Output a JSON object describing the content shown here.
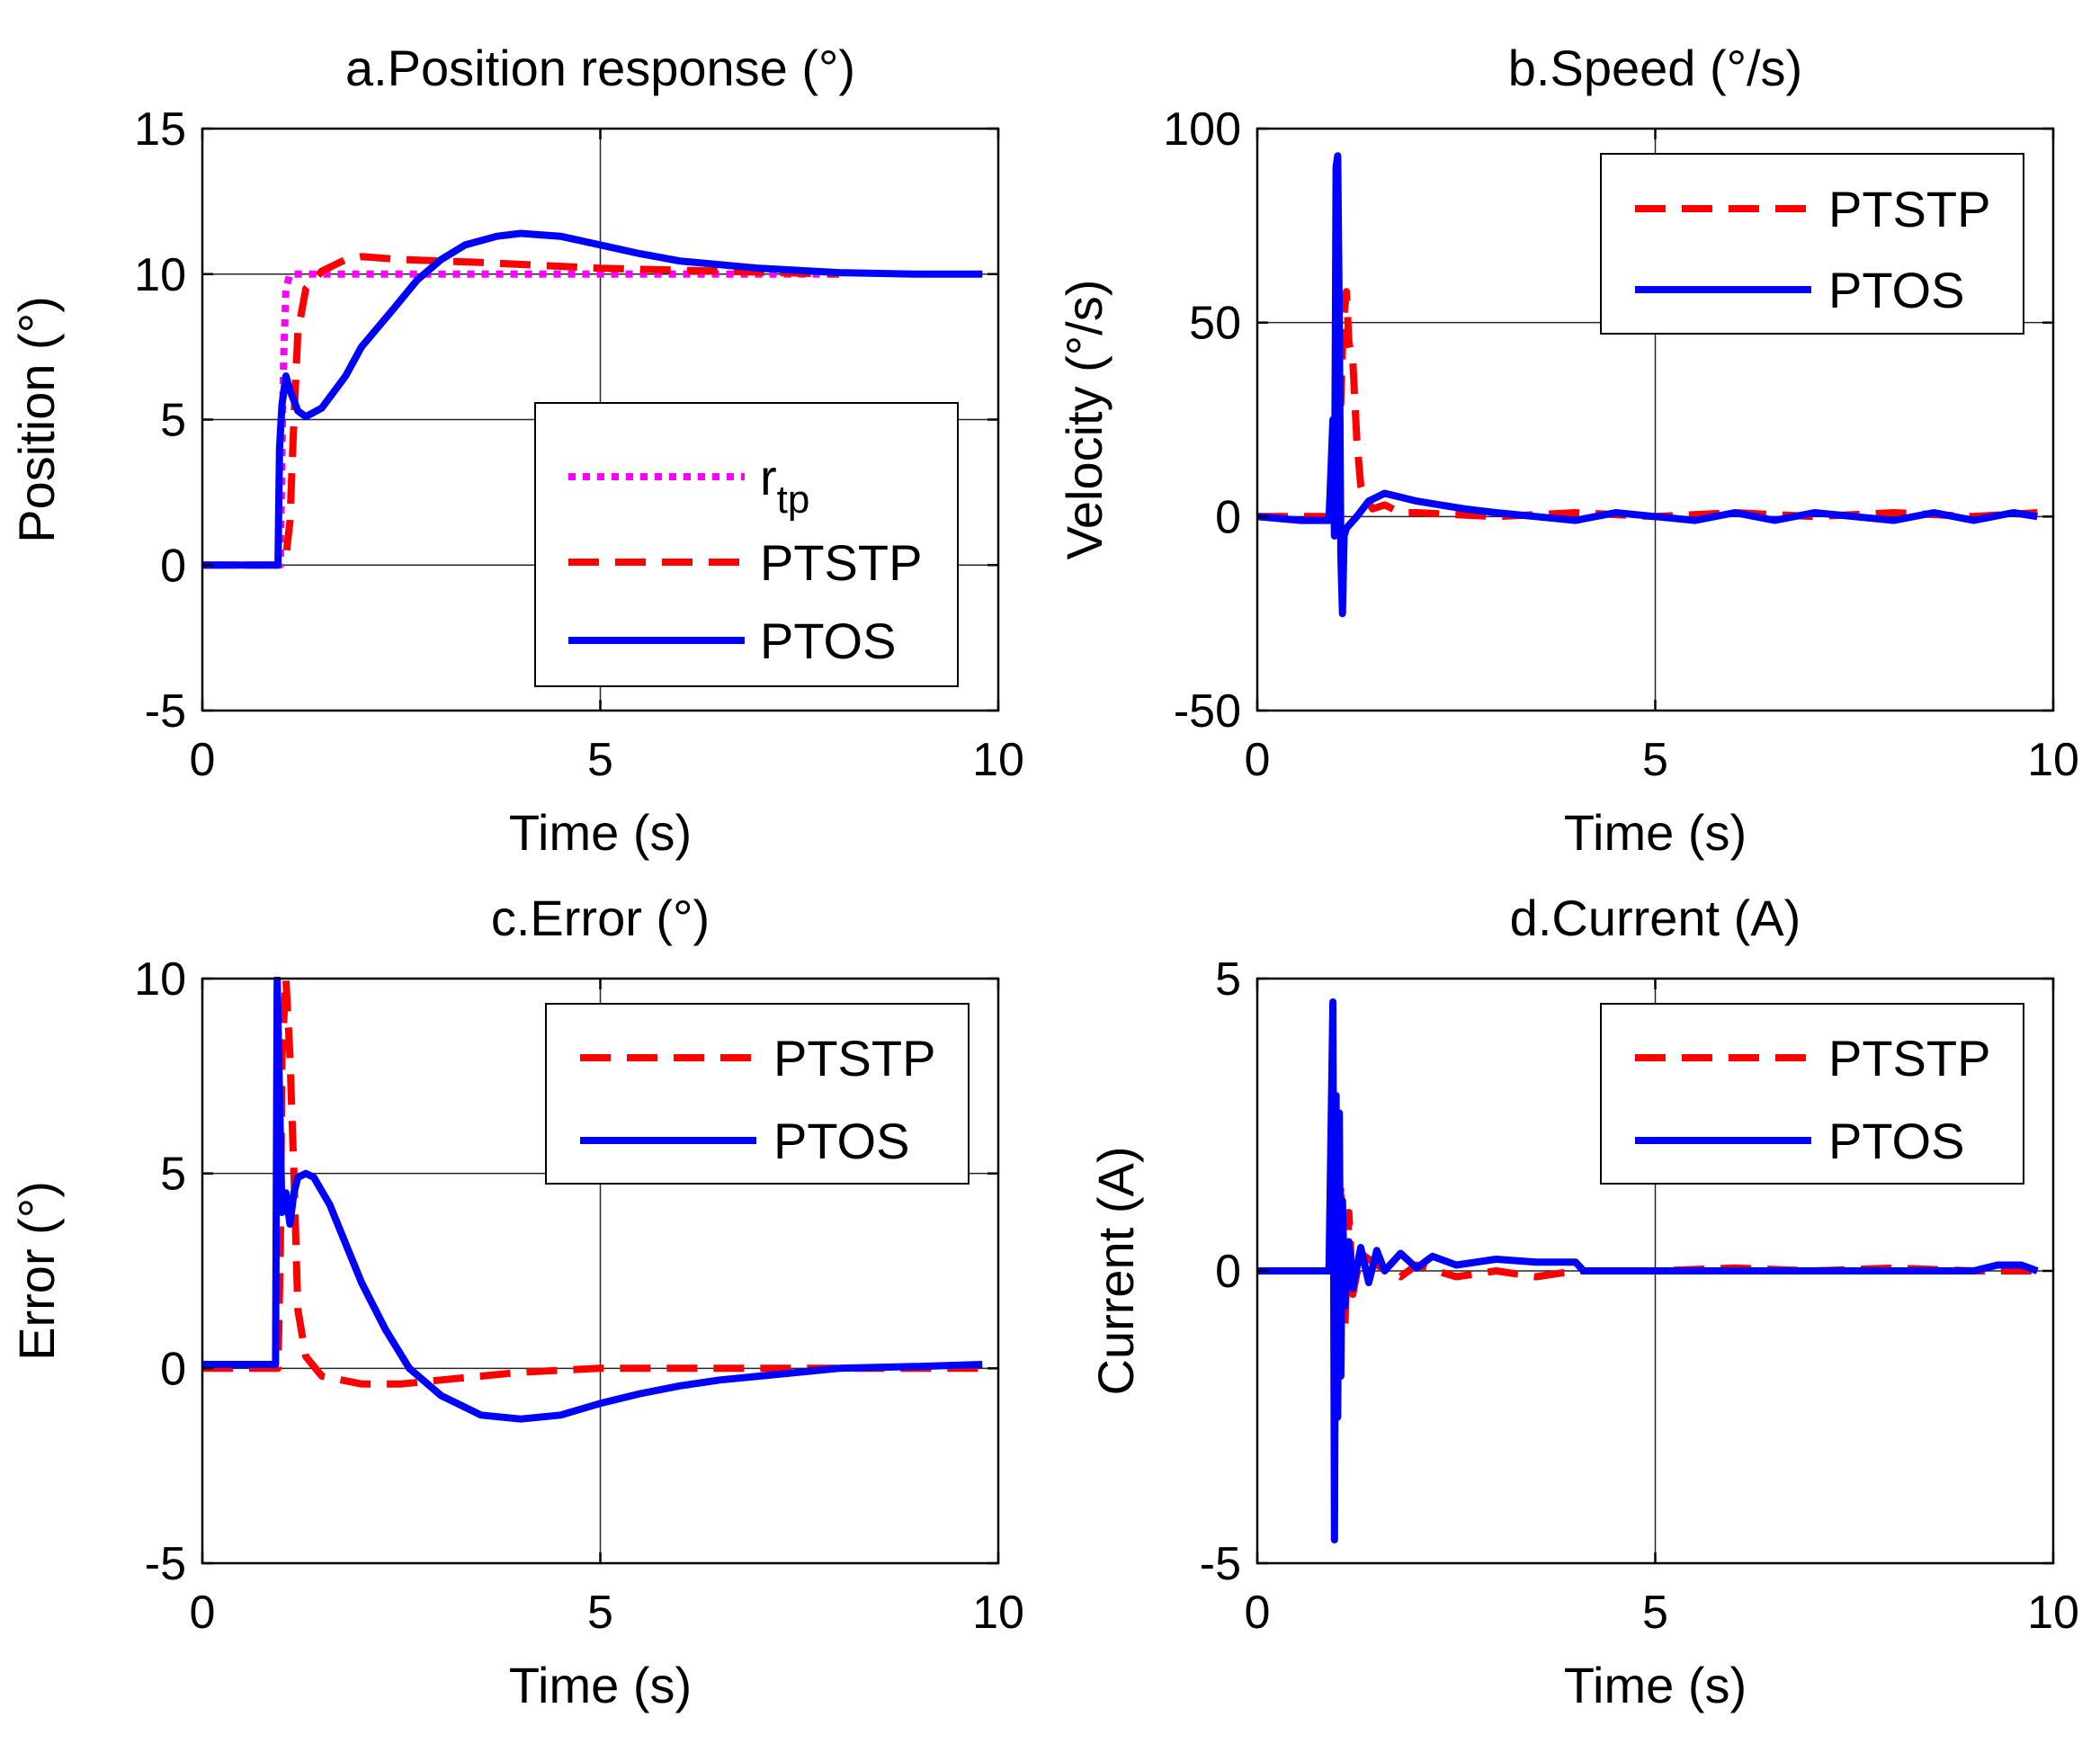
{
  "figure": {
    "colors": {
      "magenta": "#ff00ff",
      "red": "#ff0000",
      "blue": "#0000ff",
      "grid": "#262626",
      "axis": "#000000"
    }
  },
  "chart_data": [
    {
      "type": "line",
      "title": "a.Position response (°)",
      "xlabel": "Time (s)",
      "ylabel": "Position (°)",
      "xlim": [
        0,
        10
      ],
      "ylim": [
        -5,
        15
      ],
      "xticks": [
        0,
        5,
        10
      ],
      "xtick_labels": [
        "0",
        "5",
        "10"
      ],
      "yticks": [
        -5,
        0,
        5,
        10,
        15
      ],
      "ytick_labels": [
        "-5",
        "0",
        "5",
        "10",
        "15"
      ],
      "grid": true,
      "legend_position": "right-middle",
      "series": [
        {
          "name": "r",
          "name_sub": "tp",
          "color": "magenta",
          "style": "dotted",
          "points": [
            [
              0,
              0
            ],
            [
              0.98,
              0
            ],
            [
              1.0,
              4
            ],
            [
              1.02,
              7
            ],
            [
              1.05,
              9.5
            ],
            [
              1.1,
              10
            ],
            [
              8,
              10
            ]
          ]
        },
        {
          "name": "PTSTP",
          "color": "red",
          "style": "dashed",
          "points": [
            [
              0,
              0
            ],
            [
              0.95,
              0
            ],
            [
              1.05,
              0.3
            ],
            [
              1.1,
              1.5
            ],
            [
              1.15,
              5
            ],
            [
              1.2,
              8
            ],
            [
              1.3,
              9.5
            ],
            [
              1.5,
              10.1
            ],
            [
              1.8,
              10.5
            ],
            [
              2.0,
              10.6
            ],
            [
              2.5,
              10.5
            ],
            [
              3.5,
              10.4
            ],
            [
              5.0,
              10.2
            ],
            [
              6.5,
              10.1
            ],
            [
              8.0,
              10.0
            ]
          ]
        },
        {
          "name": "PTOS",
          "color": "blue",
          "style": "solid",
          "points": [
            [
              0,
              0
            ],
            [
              0.95,
              0
            ],
            [
              0.97,
              4
            ],
            [
              1.0,
              5.5
            ],
            [
              1.05,
              6.5
            ],
            [
              1.1,
              6.0
            ],
            [
              1.2,
              5.3
            ],
            [
              1.3,
              5.1
            ],
            [
              1.5,
              5.4
            ],
            [
              1.8,
              6.5
            ],
            [
              2.0,
              7.5
            ],
            [
              2.4,
              8.8
            ],
            [
              2.7,
              9.8
            ],
            [
              3.0,
              10.5
            ],
            [
              3.3,
              11.0
            ],
            [
              3.7,
              11.3
            ],
            [
              4.0,
              11.4
            ],
            [
              4.5,
              11.3
            ],
            [
              5.0,
              11.0
            ],
            [
              5.5,
              10.7
            ],
            [
              6.0,
              10.45
            ],
            [
              7.0,
              10.2
            ],
            [
              8.0,
              10.05
            ],
            [
              9.0,
              10.0
            ],
            [
              9.8,
              10.0
            ]
          ]
        }
      ]
    },
    {
      "type": "line",
      "title": "b.Speed (°/s)",
      "xlabel": "Time (s)",
      "ylabel": "Velocity (°/s)",
      "xlim": [
        0,
        10
      ],
      "ylim": [
        -50,
        100
      ],
      "xticks": [
        0,
        5,
        10
      ],
      "xtick_labels": [
        "0",
        "5",
        "10"
      ],
      "yticks": [
        -50,
        0,
        50,
        100
      ],
      "ytick_labels": [
        "-50",
        "0",
        "50",
        "100"
      ],
      "grid": true,
      "legend_position": "top-right",
      "series": [
        {
          "name": "PTSTP",
          "color": "red",
          "style": "dashed",
          "points": [
            [
              0,
              0
            ],
            [
              0.95,
              0
            ],
            [
              1.0,
              2
            ],
            [
              1.05,
              30
            ],
            [
              1.08,
              50
            ],
            [
              1.12,
              58
            ],
            [
              1.15,
              45
            ],
            [
              1.2,
              40
            ],
            [
              1.25,
              20
            ],
            [
              1.3,
              8
            ],
            [
              1.35,
              5
            ],
            [
              1.45,
              2
            ],
            [
              1.6,
              3
            ],
            [
              1.8,
              1
            ],
            [
              2.0,
              1
            ],
            [
              2.5,
              0.5
            ],
            [
              3.0,
              0
            ],
            [
              4.0,
              1
            ],
            [
              5.0,
              0
            ],
            [
              6.0,
              1
            ],
            [
              7.0,
              0
            ],
            [
              8.0,
              1
            ],
            [
              9.0,
              0
            ],
            [
              9.8,
              1
            ]
          ]
        },
        {
          "name": "PTOS",
          "color": "blue",
          "style": "solid",
          "points": [
            [
              0,
              0
            ],
            [
              0.55,
              -1
            ],
            [
              0.9,
              -1
            ],
            [
              0.95,
              25
            ],
            [
              0.97,
              -5
            ],
            [
              0.99,
              90
            ],
            [
              1.01,
              93
            ],
            [
              1.03,
              50
            ],
            [
              1.05,
              -10
            ],
            [
              1.07,
              -25
            ],
            [
              1.09,
              -5
            ],
            [
              1.12,
              -3
            ],
            [
              1.25,
              0
            ],
            [
              1.4,
              4
            ],
            [
              1.6,
              6
            ],
            [
              1.8,
              5
            ],
            [
              2.0,
              4
            ],
            [
              2.3,
              3
            ],
            [
              2.6,
              2
            ],
            [
              3.0,
              1
            ],
            [
              3.5,
              0
            ],
            [
              4.0,
              -1
            ],
            [
              4.5,
              1
            ],
            [
              5.0,
              0
            ],
            [
              5.5,
              -1
            ],
            [
              6.0,
              1
            ],
            [
              6.5,
              -1
            ],
            [
              7.0,
              1
            ],
            [
              7.5,
              0
            ],
            [
              8.0,
              -1
            ],
            [
              8.5,
              1
            ],
            [
              9.0,
              -1
            ],
            [
              9.5,
              1
            ],
            [
              9.8,
              0
            ]
          ]
        }
      ]
    },
    {
      "type": "line",
      "title": "c.Error (°)",
      "xlabel": "Time (s)",
      "ylabel": "Error (°)",
      "xlim": [
        0,
        10
      ],
      "ylim": [
        -5,
        10
      ],
      "xticks": [
        0,
        5,
        10
      ],
      "xtick_labels": [
        "0",
        "5",
        "10"
      ],
      "yticks": [
        -5,
        0,
        5,
        10
      ],
      "ytick_labels": [
        "-5",
        "0",
        "5",
        "10"
      ],
      "grid": true,
      "legend_position": "top-right",
      "series": [
        {
          "name": "PTSTP",
          "color": "red",
          "style": "dashed",
          "points": [
            [
              0,
              0
            ],
            [
              0.95,
              0
            ],
            [
              0.98,
              3
            ],
            [
              1.0,
              8
            ],
            [
              1.05,
              10
            ],
            [
              1.1,
              8
            ],
            [
              1.15,
              5
            ],
            [
              1.2,
              1.5
            ],
            [
              1.3,
              0.3
            ],
            [
              1.5,
              -0.2
            ],
            [
              2.0,
              -0.4
            ],
            [
              2.5,
              -0.4
            ],
            [
              3.0,
              -0.3
            ],
            [
              3.5,
              -0.2
            ],
            [
              4.0,
              -0.1
            ],
            [
              5.0,
              0
            ],
            [
              6.0,
              0
            ],
            [
              7.0,
              0
            ],
            [
              8.0,
              0
            ],
            [
              9.0,
              0
            ],
            [
              9.8,
              0
            ]
          ]
        },
        {
          "name": "PTOS",
          "color": "blue",
          "style": "solid",
          "points": [
            [
              0,
              0.1
            ],
            [
              0.92,
              0.1
            ],
            [
              0.94,
              10
            ],
            [
              0.97,
              7
            ],
            [
              1.0,
              4
            ],
            [
              1.05,
              4.5
            ],
            [
              1.1,
              3.7
            ],
            [
              1.15,
              4.5
            ],
            [
              1.2,
              4.9
            ],
            [
              1.3,
              5.0
            ],
            [
              1.4,
              4.9
            ],
            [
              1.6,
              4.2
            ],
            [
              1.8,
              3.2
            ],
            [
              2.0,
              2.2
            ],
            [
              2.3,
              1.0
            ],
            [
              2.6,
              0.0
            ],
            [
              3.0,
              -0.7
            ],
            [
              3.5,
              -1.2
            ],
            [
              4.0,
              -1.3
            ],
            [
              4.5,
              -1.2
            ],
            [
              5.0,
              -0.9
            ],
            [
              5.5,
              -0.65
            ],
            [
              6.0,
              -0.45
            ],
            [
              6.5,
              -0.3
            ],
            [
              7.0,
              -0.2
            ],
            [
              7.5,
              -0.1
            ],
            [
              8.0,
              0
            ],
            [
              9.0,
              0.05
            ],
            [
              9.8,
              0.1
            ]
          ]
        }
      ]
    },
    {
      "type": "line",
      "title": "d.Current (A)",
      "xlabel": "Time (s)",
      "ylabel": "Current (A)",
      "xlim": [
        0,
        10
      ],
      "ylim": [
        -5,
        5
      ],
      "xticks": [
        0,
        5,
        10
      ],
      "xtick_labels": [
        "0",
        "5",
        "10"
      ],
      "yticks": [
        -5,
        0,
        5
      ],
      "ytick_labels": [
        "-5",
        "0",
        "5"
      ],
      "grid": true,
      "legend_position": "top-right",
      "series": [
        {
          "name": "PTSTP",
          "color": "red",
          "style": "dashed",
          "points": [
            [
              0,
              0
            ],
            [
              0.95,
              0
            ],
            [
              1.0,
              -0.5
            ],
            [
              1.05,
              1.5
            ],
            [
              1.1,
              -1.0
            ],
            [
              1.15,
              1.0
            ],
            [
              1.2,
              -0.4
            ],
            [
              1.3,
              0.3
            ],
            [
              1.5,
              0.1
            ],
            [
              1.8,
              -0.1
            ],
            [
              2.0,
              0.1
            ],
            [
              2.5,
              -0.1
            ],
            [
              3.0,
              0
            ],
            [
              3.5,
              -0.1
            ],
            [
              4.0,
              0
            ],
            [
              5.0,
              0
            ],
            [
              6.0,
              0.05
            ],
            [
              7.0,
              0
            ],
            [
              8.0,
              0.05
            ],
            [
              9.0,
              0
            ],
            [
              9.8,
              0
            ]
          ]
        },
        {
          "name": "PTOS",
          "color": "blue",
          "style": "solid",
          "points": [
            [
              0,
              0
            ],
            [
              0.9,
              0
            ],
            [
              0.95,
              4.6
            ],
            [
              0.97,
              -4.6
            ],
            [
              0.99,
              3.0
            ],
            [
              1.01,
              -2.5
            ],
            [
              1.03,
              2.7
            ],
            [
              1.05,
              -1.8
            ],
            [
              1.07,
              1.2
            ],
            [
              1.1,
              -0.6
            ],
            [
              1.15,
              0.5
            ],
            [
              1.2,
              -0.3
            ],
            [
              1.3,
              0.4
            ],
            [
              1.4,
              -0.2
            ],
            [
              1.5,
              0.35
            ],
            [
              1.6,
              0
            ],
            [
              1.8,
              0.3
            ],
            [
              2.0,
              0.05
            ],
            [
              2.2,
              0.25
            ],
            [
              2.5,
              0.1
            ],
            [
              3.0,
              0.2
            ],
            [
              3.5,
              0.15
            ],
            [
              4.0,
              0.15
            ],
            [
              4.1,
              0
            ],
            [
              5.0,
              0
            ],
            [
              6.0,
              0
            ],
            [
              7.0,
              0
            ],
            [
              8.0,
              0
            ],
            [
              9.0,
              0
            ],
            [
              9.3,
              0.1
            ],
            [
              9.6,
              0.1
            ],
            [
              9.8,
              0
            ]
          ]
        }
      ]
    }
  ]
}
